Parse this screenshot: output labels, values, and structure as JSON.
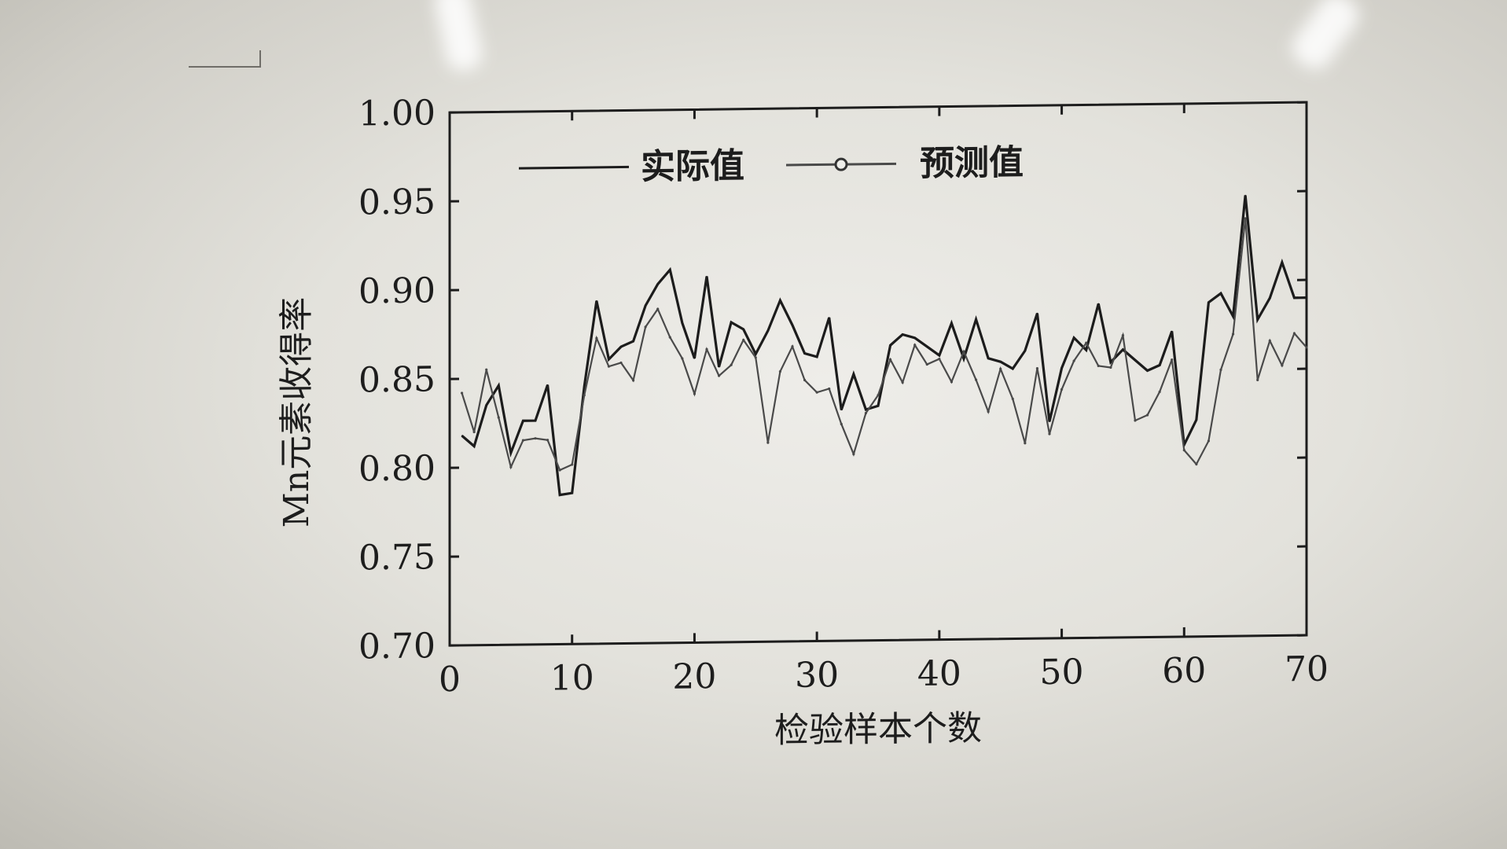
{
  "chart_data": {
    "type": "line",
    "title": "",
    "xlabel": "检验样本个数",
    "ylabel": "Mn元素收得率",
    "xlim": [
      0,
      70
    ],
    "ylim": [
      0.7,
      1.0
    ],
    "xticks": [
      0,
      10,
      20,
      30,
      40,
      50,
      60,
      70
    ],
    "xtick_labels": [
      "0",
      "10",
      "20",
      "30",
      "40",
      "50",
      "60",
      "70"
    ],
    "yticks": [
      0.7,
      0.75,
      0.8,
      0.85,
      0.9,
      0.95,
      1.0
    ],
    "ytick_labels": [
      "0.70",
      "0.75",
      "0.80",
      "0.85",
      "0.90",
      "0.95",
      "1.00"
    ],
    "legend_position": "top-left",
    "grid": false,
    "colors": {
      "actual": "#1c1c1c",
      "predicted": "#4a4a4a",
      "axis": "#1d1d1d"
    },
    "x": [
      1,
      2,
      3,
      4,
      5,
      6,
      7,
      8,
      9,
      10,
      11,
      12,
      13,
      14,
      15,
      16,
      17,
      18,
      19,
      20,
      21,
      22,
      23,
      24,
      25,
      26,
      27,
      28,
      29,
      30,
      31,
      32,
      33,
      34,
      35,
      36,
      37,
      38,
      39,
      40,
      41,
      42,
      43,
      44,
      45,
      46,
      47,
      48,
      49,
      50,
      51,
      52,
      53,
      54,
      55,
      56,
      57,
      58,
      59,
      60,
      61,
      62,
      63,
      64,
      65,
      66,
      67,
      68,
      69,
      70
    ],
    "series": [
      {
        "name": "实际值",
        "marker": "none",
        "values": [
          0.818,
          0.812,
          0.835,
          0.846,
          0.808,
          0.826,
          0.826,
          0.846,
          0.784,
          0.785,
          0.845,
          0.893,
          0.86,
          0.867,
          0.87,
          0.89,
          0.902,
          0.91,
          0.88,
          0.86,
          0.906,
          0.855,
          0.88,
          0.876,
          0.862,
          0.875,
          0.892,
          0.878,
          0.862,
          0.86,
          0.882,
          0.83,
          0.85,
          0.83,
          0.832,
          0.866,
          0.872,
          0.87,
          0.865,
          0.86,
          0.878,
          0.858,
          0.88,
          0.858,
          0.856,
          0.852,
          0.862,
          0.883,
          0.822,
          0.852,
          0.869,
          0.862,
          0.888,
          0.855,
          0.862,
          0.856,
          0.85,
          0.853,
          0.872,
          0.808,
          0.822,
          0.888,
          0.893,
          0.88,
          0.948,
          0.878,
          0.89,
          0.91,
          0.89,
          0.89
        ]
      },
      {
        "name": "预测值",
        "marker": "circle",
        "values": [
          0.842,
          0.82,
          0.855,
          0.828,
          0.8,
          0.815,
          0.816,
          0.815,
          0.798,
          0.801,
          0.84,
          0.872,
          0.856,
          0.858,
          0.848,
          0.878,
          0.888,
          0.872,
          0.86,
          0.84,
          0.865,
          0.85,
          0.856,
          0.87,
          0.86,
          0.812,
          0.852,
          0.866,
          0.847,
          0.84,
          0.842,
          0.822,
          0.805,
          0.828,
          0.838,
          0.858,
          0.845,
          0.866,
          0.855,
          0.858,
          0.845,
          0.862,
          0.846,
          0.828,
          0.852,
          0.835,
          0.81,
          0.852,
          0.815,
          0.84,
          0.856,
          0.866,
          0.853,
          0.852,
          0.87,
          0.822,
          0.825,
          0.838,
          0.856,
          0.805,
          0.797,
          0.81,
          0.85,
          0.87,
          0.935,
          0.844,
          0.866,
          0.852,
          0.87,
          0.862
        ]
      }
    ]
  }
}
